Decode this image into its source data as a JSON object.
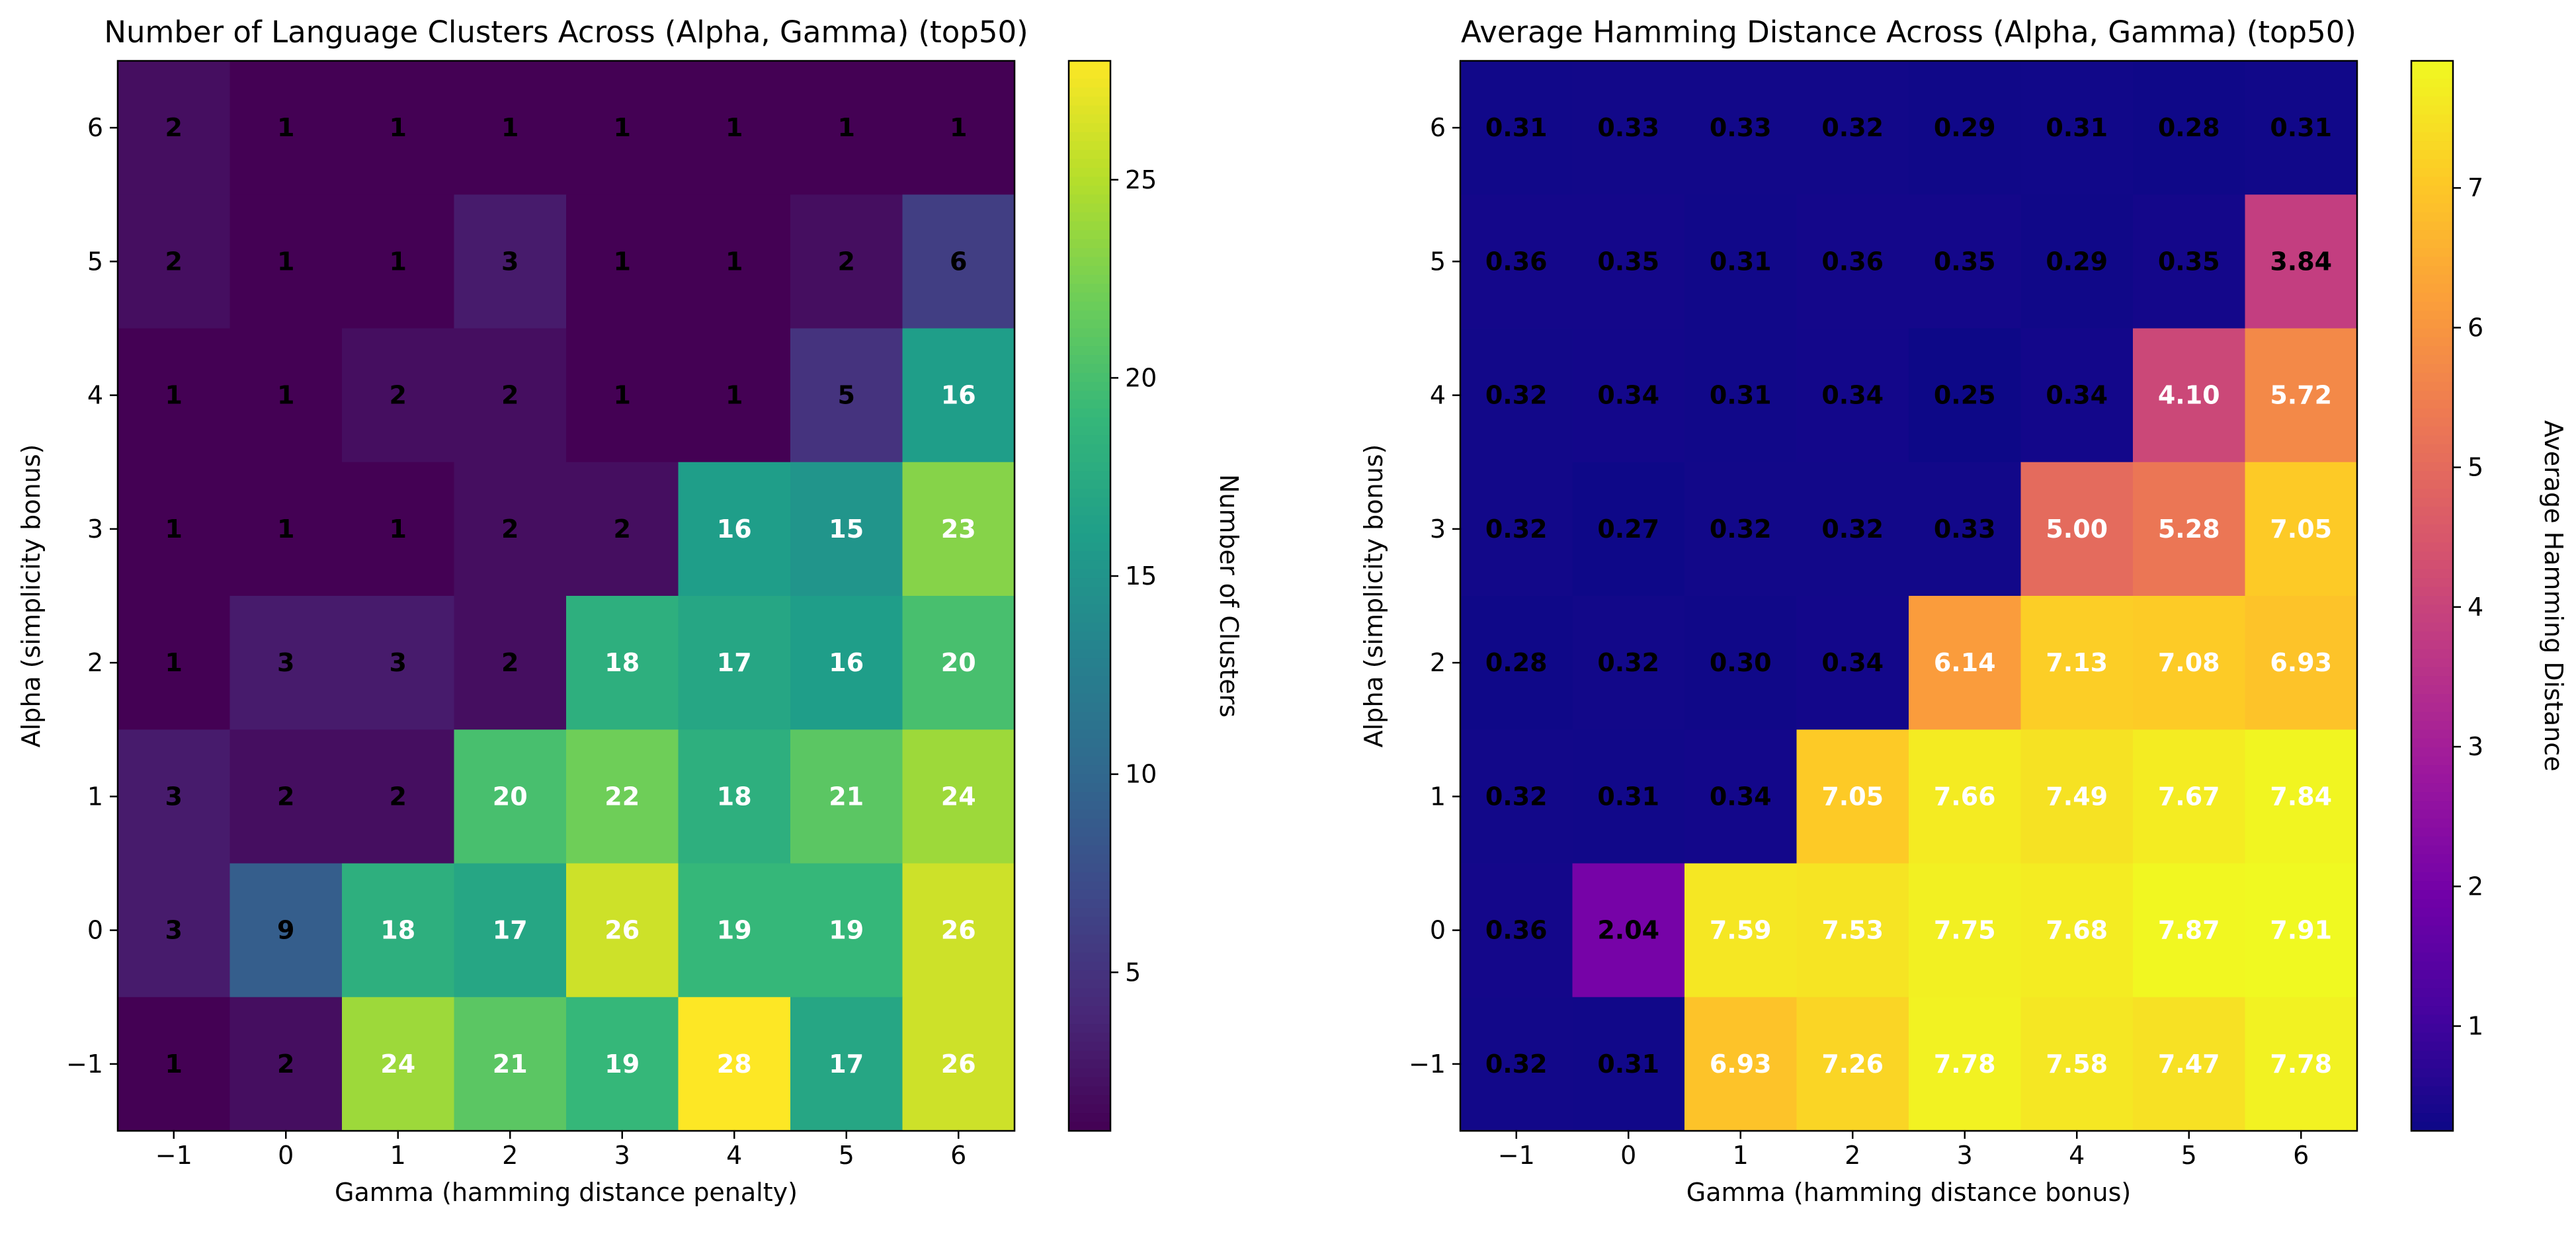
{
  "chart_data": [
    {
      "type": "heatmap",
      "title": "Number of Language Clusters Across (Alpha, Gamma) (top50)",
      "xlabel": "Gamma (hamming distance penalty)",
      "ylabel": "Alpha (simplicity bonus)",
      "x_ticks": [
        "−1",
        "0",
        "1",
        "2",
        "3",
        "4",
        "5",
        "6"
      ],
      "y_ticks": [
        "6",
        "5",
        "4",
        "3",
        "2",
        "1",
        "0",
        "−1"
      ],
      "values": [
        [
          2,
          1,
          1,
          1,
          1,
          1,
          1,
          1
        ],
        [
          2,
          1,
          1,
          3,
          1,
          1,
          2,
          6
        ],
        [
          1,
          1,
          2,
          2,
          1,
          1,
          5,
          16
        ],
        [
          1,
          1,
          1,
          2,
          2,
          16,
          15,
          23
        ],
        [
          1,
          3,
          3,
          2,
          18,
          17,
          16,
          20
        ],
        [
          3,
          2,
          2,
          20,
          22,
          18,
          21,
          24
        ],
        [
          3,
          9,
          18,
          17,
          26,
          19,
          19,
          26
        ],
        [
          1,
          2,
          24,
          21,
          19,
          28,
          17,
          26
        ]
      ],
      "labels": [
        [
          "2",
          "1",
          "1",
          "1",
          "1",
          "1",
          "1",
          "1"
        ],
        [
          "2",
          "1",
          "1",
          "3",
          "1",
          "1",
          "2",
          "6"
        ],
        [
          "1",
          "1",
          "2",
          "2",
          "1",
          "1",
          "5",
          "16"
        ],
        [
          "1",
          "1",
          "1",
          "2",
          "2",
          "16",
          "15",
          "23"
        ],
        [
          "1",
          "3",
          "3",
          "2",
          "18",
          "17",
          "16",
          "20"
        ],
        [
          "3",
          "2",
          "2",
          "20",
          "22",
          "18",
          "21",
          "24"
        ],
        [
          "3",
          "9",
          "18",
          "17",
          "26",
          "19",
          "19",
          "26"
        ],
        [
          "1",
          "2",
          "24",
          "21",
          "19",
          "28",
          "17",
          "26"
        ]
      ],
      "colormap": "viridis",
      "vmin": 1,
      "vmax": 28,
      "label_threshold": 14.5,
      "colorbar": {
        "label": "Number of Clusters",
        "ticks": [
          5,
          10,
          15,
          20,
          25
        ],
        "tick_labels": [
          "5",
          "10",
          "15",
          "20",
          "25"
        ]
      }
    },
    {
      "type": "heatmap",
      "title": "Average Hamming Distance Across (Alpha, Gamma) (top50)",
      "xlabel": "Gamma (hamming distance bonus)",
      "ylabel": "Alpha (simplicity bonus)",
      "x_ticks": [
        "−1",
        "0",
        "1",
        "2",
        "3",
        "4",
        "5",
        "6"
      ],
      "y_ticks": [
        "6",
        "5",
        "4",
        "3",
        "2",
        "1",
        "0",
        "−1"
      ],
      "values": [
        [
          0.31,
          0.33,
          0.33,
          0.32,
          0.29,
          0.31,
          0.28,
          0.31
        ],
        [
          0.36,
          0.35,
          0.31,
          0.36,
          0.35,
          0.29,
          0.35,
          3.84
        ],
        [
          0.32,
          0.34,
          0.31,
          0.34,
          0.25,
          0.34,
          4.1,
          5.72
        ],
        [
          0.32,
          0.27,
          0.32,
          0.32,
          0.33,
          5.0,
          5.28,
          7.05
        ],
        [
          0.28,
          0.32,
          0.3,
          0.34,
          6.14,
          7.13,
          7.08,
          6.93
        ],
        [
          0.32,
          0.31,
          0.34,
          7.05,
          7.66,
          7.49,
          7.67,
          7.84
        ],
        [
          0.36,
          2.04,
          7.59,
          7.53,
          7.75,
          7.68,
          7.87,
          7.91
        ],
        [
          0.32,
          0.31,
          6.93,
          7.26,
          7.78,
          7.58,
          7.47,
          7.78
        ]
      ],
      "labels": [
        [
          "0.31",
          "0.33",
          "0.33",
          "0.32",
          "0.29",
          "0.31",
          "0.28",
          "0.31"
        ],
        [
          "0.36",
          "0.35",
          "0.31",
          "0.36",
          "0.35",
          "0.29",
          "0.35",
          "3.84"
        ],
        [
          "0.32",
          "0.34",
          "0.31",
          "0.34",
          "0.25",
          "0.34",
          "4.10",
          "5.72"
        ],
        [
          "0.32",
          "0.27",
          "0.32",
          "0.32",
          "0.33",
          "5.00",
          "5.28",
          "7.05"
        ],
        [
          "0.28",
          "0.32",
          "0.30",
          "0.34",
          "6.14",
          "7.13",
          "7.08",
          "6.93"
        ],
        [
          "0.32",
          "0.31",
          "0.34",
          "7.05",
          "7.66",
          "7.49",
          "7.67",
          "7.84"
        ],
        [
          "0.36",
          "2.04",
          "7.59",
          "7.53",
          "7.75",
          "7.68",
          "7.87",
          "7.91"
        ],
        [
          "0.32",
          "0.31",
          "6.93",
          "7.26",
          "7.78",
          "7.58",
          "7.47",
          "7.78"
        ]
      ],
      "colormap": "plasma",
      "vmin": 0.25,
      "vmax": 7.91,
      "label_threshold": 4.0,
      "colorbar": {
        "label": "Average Hamming Distance",
        "ticks": [
          1,
          2,
          3,
          4,
          5,
          6,
          7
        ],
        "tick_labels": [
          "1",
          "2",
          "3",
          "4",
          "5",
          "6",
          "7"
        ]
      }
    }
  ]
}
